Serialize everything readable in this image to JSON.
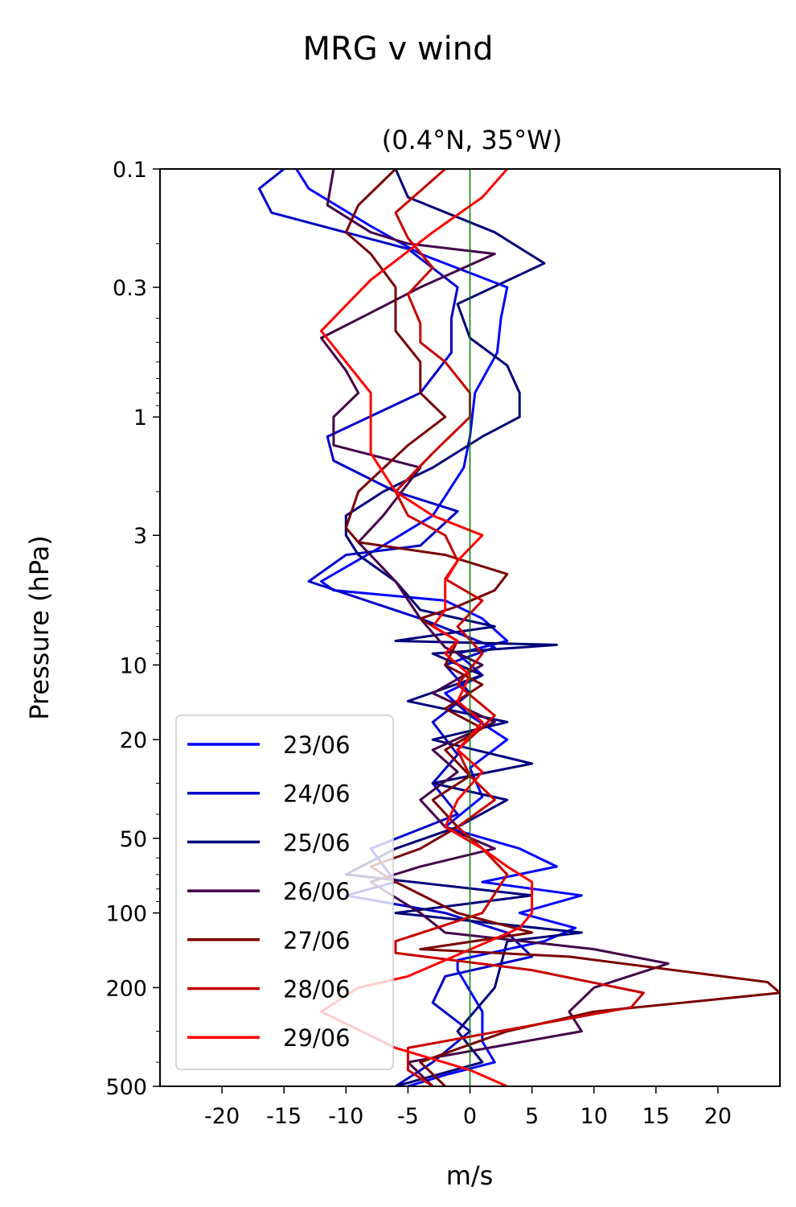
{
  "chart_data": {
    "type": "line",
    "title": "MRG v wind",
    "subtitle": "(0.4°N, 35°W)",
    "xlabel": "m/s",
    "ylabel": "Pressure (hPa)",
    "xlim": [
      -25,
      25
    ],
    "ylim": [
      500,
      0.1
    ],
    "yscale": "log",
    "xticks": [
      -20,
      -15,
      -10,
      -5,
      0,
      5,
      10,
      15,
      20
    ],
    "xtick_labels": [
      "-20",
      "-15",
      "-10",
      "-5",
      "0",
      "5",
      "10",
      "15",
      "20"
    ],
    "yticks": [
      0.1,
      0.3,
      1,
      3,
      10,
      20,
      50,
      100,
      200,
      500
    ],
    "ytick_labels": [
      "0.1",
      "0.3",
      "1",
      "3",
      "10",
      "20",
      "50",
      "100",
      "200",
      "500"
    ],
    "grid": false,
    "legend_position": "lower-left",
    "reference_line": {
      "x": 0,
      "color": "#007a00"
    },
    "series": [
      {
        "name": "23/06",
        "color": "#0000ff",
        "points": [
          [
            -14,
            0.1
          ],
          [
            -13,
            0.12
          ],
          [
            -8,
            0.17
          ],
          [
            -4,
            0.22
          ],
          [
            3,
            0.3
          ],
          [
            2.5,
            0.4
          ],
          [
            2.2,
            0.55
          ],
          [
            0.4,
            0.8
          ],
          [
            0,
            1.2
          ],
          [
            -0.5,
            1.6
          ],
          [
            -3,
            2.5
          ],
          [
            -7,
            3.3
          ],
          [
            -12,
            4.6
          ],
          [
            -11,
            5
          ],
          [
            -2,
            5.5
          ],
          [
            1,
            6.5
          ],
          [
            3,
            8
          ],
          [
            -1,
            9
          ],
          [
            1,
            11
          ],
          [
            -2,
            13
          ],
          [
            0,
            16
          ],
          [
            3,
            20
          ],
          [
            0,
            26
          ],
          [
            1,
            34
          ],
          [
            -2,
            45
          ],
          [
            4,
            55
          ],
          [
            7,
            65
          ],
          [
            1,
            75
          ],
          [
            9,
            85
          ],
          [
            4,
            100
          ],
          [
            8.5,
            115
          ],
          [
            6,
            130
          ],
          [
            -1,
            155
          ],
          [
            -1,
            170
          ],
          [
            1,
            250
          ],
          [
            1,
            330
          ],
          [
            2,
            400
          ],
          [
            -2,
            450
          ],
          [
            -5,
            500
          ]
        ]
      },
      {
        "name": "24/06",
        "color": "#0000c8",
        "points": [
          [
            -15,
            0.1
          ],
          [
            -17,
            0.12
          ],
          [
            -16,
            0.15
          ],
          [
            -5,
            0.21
          ],
          [
            -1,
            0.3
          ],
          [
            -1.5,
            0.4
          ],
          [
            -1.5,
            0.55
          ],
          [
            -4,
            0.8
          ],
          [
            -11.5,
            1.2
          ],
          [
            -11,
            1.5
          ],
          [
            -6,
            2
          ],
          [
            -1,
            2.4
          ],
          [
            -4,
            3.3
          ],
          [
            -10,
            3.6
          ],
          [
            -13,
            4.6
          ],
          [
            -4,
            6.5
          ],
          [
            2,
            8.5
          ],
          [
            -2,
            10
          ],
          [
            0,
            13
          ],
          [
            -3,
            17
          ],
          [
            -1,
            23
          ],
          [
            -3,
            30
          ],
          [
            -1,
            40
          ],
          [
            -8,
            55
          ],
          [
            -6,
            75
          ],
          [
            -10,
            85
          ],
          [
            -2,
            100
          ],
          [
            3,
            120
          ],
          [
            5,
            150
          ],
          [
            -2,
            180
          ],
          [
            -3,
            230
          ],
          [
            0,
            300
          ],
          [
            -3,
            400
          ],
          [
            -6,
            500
          ]
        ]
      },
      {
        "name": "25/06",
        "color": "#00007a",
        "points": [
          [
            -6,
            0.1
          ],
          [
            -5,
            0.13
          ],
          [
            2,
            0.18
          ],
          [
            6,
            0.24
          ],
          [
            -1,
            0.35
          ],
          [
            0,
            0.48
          ],
          [
            3,
            0.62
          ],
          [
            4,
            0.8
          ],
          [
            4,
            1.0
          ],
          [
            1,
            1.2
          ],
          [
            -3,
            1.6
          ],
          [
            -7,
            2
          ],
          [
            -10,
            2.5
          ],
          [
            -10,
            3
          ],
          [
            -9,
            3.6
          ],
          [
            -6,
            4.6
          ],
          [
            -4,
            6
          ],
          [
            2,
            7
          ],
          [
            -6,
            8
          ],
          [
            7,
            8.3
          ],
          [
            -3,
            9
          ],
          [
            1,
            11
          ],
          [
            -5,
            14
          ],
          [
            3,
            17
          ],
          [
            -3,
            20
          ],
          [
            5,
            25
          ],
          [
            -3,
            30
          ],
          [
            3,
            35
          ],
          [
            -1,
            45
          ],
          [
            -6,
            55
          ],
          [
            -10,
            70
          ],
          [
            5,
            85
          ],
          [
            -6,
            100
          ],
          [
            9,
            120
          ],
          [
            3,
            130
          ],
          [
            2,
            200
          ],
          [
            -1,
            300
          ],
          [
            1,
            400
          ],
          [
            -6,
            500
          ]
        ]
      },
      {
        "name": "26/06",
        "color": "#44004a",
        "points": [
          [
            -11,
            0.1
          ],
          [
            -11.5,
            0.14
          ],
          [
            -8,
            0.18
          ],
          [
            -5,
            0.2
          ],
          [
            2,
            0.22
          ],
          [
            -4,
            0.3
          ],
          [
            -8,
            0.38
          ],
          [
            -12,
            0.48
          ],
          [
            -10,
            0.65
          ],
          [
            -9,
            0.8
          ],
          [
            -11,
            1.0
          ],
          [
            -11,
            1.3
          ],
          [
            -4,
            1.6
          ],
          [
            -7,
            2.5
          ],
          [
            -9,
            3.2
          ],
          [
            -6,
            4.6
          ],
          [
            -4,
            6.5
          ],
          [
            -2,
            8.5
          ],
          [
            1,
            10
          ],
          [
            -3,
            13
          ],
          [
            2,
            17
          ],
          [
            -3,
            22
          ],
          [
            -1,
            27
          ],
          [
            -4,
            35
          ],
          [
            -2,
            45
          ],
          [
            2,
            55
          ],
          [
            -4,
            65
          ],
          [
            -8,
            75
          ],
          [
            -4,
            100
          ],
          [
            -2,
            120
          ],
          [
            10,
            140
          ],
          [
            16,
            160
          ],
          [
            10,
            200
          ],
          [
            8,
            250
          ],
          [
            9,
            300
          ],
          [
            -5,
            400
          ],
          [
            -3,
            500
          ]
        ]
      },
      {
        "name": "27/06",
        "color": "#7a0000",
        "points": [
          [
            -6,
            0.1
          ],
          [
            -9,
            0.14
          ],
          [
            -10,
            0.18
          ],
          [
            -8,
            0.22
          ],
          [
            -6,
            0.3
          ],
          [
            -6,
            0.45
          ],
          [
            -4,
            0.6
          ],
          [
            -4,
            0.8
          ],
          [
            -2,
            1.0
          ],
          [
            -5,
            1.3
          ],
          [
            -9,
            2
          ],
          [
            -10,
            2.8
          ],
          [
            -9,
            3.2
          ],
          [
            -2,
            3.6
          ],
          [
            3,
            4.3
          ],
          [
            2,
            5
          ],
          [
            -1,
            5.8
          ],
          [
            -4,
            6.5
          ],
          [
            -1,
            8
          ],
          [
            -2,
            10
          ],
          [
            1,
            12
          ],
          [
            -2,
            15
          ],
          [
            1,
            18
          ],
          [
            -2,
            22
          ],
          [
            0,
            28
          ],
          [
            -3,
            35
          ],
          [
            -1,
            45
          ],
          [
            -4,
            55
          ],
          [
            -8,
            65
          ],
          [
            -6,
            75
          ],
          [
            -1,
            100
          ],
          [
            5,
            120
          ],
          [
            -4,
            140
          ],
          [
            8,
            150
          ],
          [
            24,
            190
          ],
          [
            25,
            210
          ],
          [
            10,
            250
          ],
          [
            3,
            300
          ],
          [
            -4,
            400
          ],
          [
            -2,
            500
          ]
        ]
      },
      {
        "name": "28/06",
        "color": "#c80000",
        "points": [
          [
            -2,
            0.1
          ],
          [
            -6,
            0.15
          ],
          [
            -5,
            0.19
          ],
          [
            -3,
            0.25
          ],
          [
            -5,
            0.32
          ],
          [
            -4,
            0.42
          ],
          [
            -4,
            0.5
          ],
          [
            -2,
            0.6
          ],
          [
            0,
            0.8
          ],
          [
            0,
            1.0
          ],
          [
            -3,
            1.4
          ],
          [
            -6,
            2
          ],
          [
            -5,
            2.5
          ],
          [
            -2,
            3
          ],
          [
            -1,
            3.8
          ],
          [
            -2,
            4.5
          ],
          [
            1,
            5.5
          ],
          [
            -1,
            7
          ],
          [
            1,
            9
          ],
          [
            -1,
            12
          ],
          [
            2,
            16
          ],
          [
            -1,
            22
          ],
          [
            0,
            28
          ],
          [
            2,
            35
          ],
          [
            -1,
            45
          ],
          [
            1,
            55
          ],
          [
            3,
            70
          ],
          [
            1,
            100
          ],
          [
            -6,
            130
          ],
          [
            -6,
            145
          ],
          [
            5,
            170
          ],
          [
            14,
            210
          ],
          [
            13,
            240
          ],
          [
            -5,
            350
          ],
          [
            -5,
            430
          ],
          [
            -3,
            500
          ]
        ]
      },
      {
        "name": "29/06",
        "color": "#ff0000",
        "points": [
          [
            3,
            0.1
          ],
          [
            1,
            0.13
          ],
          [
            -3,
            0.18
          ],
          [
            -8,
            0.28
          ],
          [
            -12,
            0.45
          ],
          [
            -10,
            0.6
          ],
          [
            -8,
            0.8
          ],
          [
            -8,
            1.0
          ],
          [
            -8,
            1.4
          ],
          [
            -6,
            2
          ],
          [
            -3,
            2.5
          ],
          [
            1,
            3
          ],
          [
            -1,
            3.8
          ],
          [
            -2,
            4.6
          ],
          [
            -2,
            6
          ],
          [
            -3,
            7
          ],
          [
            -1,
            8
          ],
          [
            -2,
            9
          ],
          [
            0,
            11
          ],
          [
            -1,
            14
          ],
          [
            1,
            17
          ],
          [
            -1,
            22
          ],
          [
            1,
            27
          ],
          [
            -1,
            35
          ],
          [
            -2,
            45
          ],
          [
            1,
            55
          ],
          [
            3,
            65
          ],
          [
            5,
            75
          ],
          [
            5,
            100
          ],
          [
            4,
            115
          ],
          [
            -5,
            180
          ],
          [
            -9,
            200
          ],
          [
            -12,
            250
          ],
          [
            -6,
            350
          ],
          [
            0,
            430
          ],
          [
            3,
            500
          ]
        ]
      }
    ]
  }
}
